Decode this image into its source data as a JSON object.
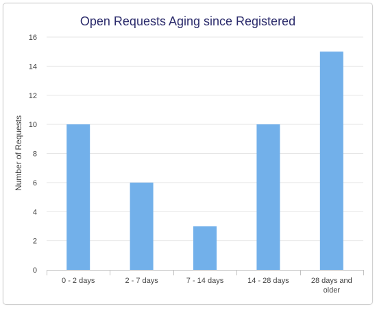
{
  "chart_data": {
    "type": "bar",
    "title": "Open Requests Aging since Registered",
    "xlabel": "",
    "ylabel": "Number of Requests",
    "categories": [
      [
        "0 - 2 days"
      ],
      [
        "2 - 7 days"
      ],
      [
        "7 - 14 days"
      ],
      [
        "14 - 28 days"
      ],
      [
        "28 days and",
        "older"
      ]
    ],
    "values": [
      10,
      6,
      3,
      10,
      15
    ],
    "ylim": [
      0,
      16
    ],
    "yticks": [
      "0",
      "2",
      "4",
      "6",
      "8",
      "10",
      "12",
      "14",
      "16"
    ],
    "grid": true,
    "legend": "none",
    "bar_color": "#72b0ea",
    "grid_color": "#e6e6e6",
    "axis_color": "#c0c0c0",
    "title_color": "#2b2b6b"
  }
}
